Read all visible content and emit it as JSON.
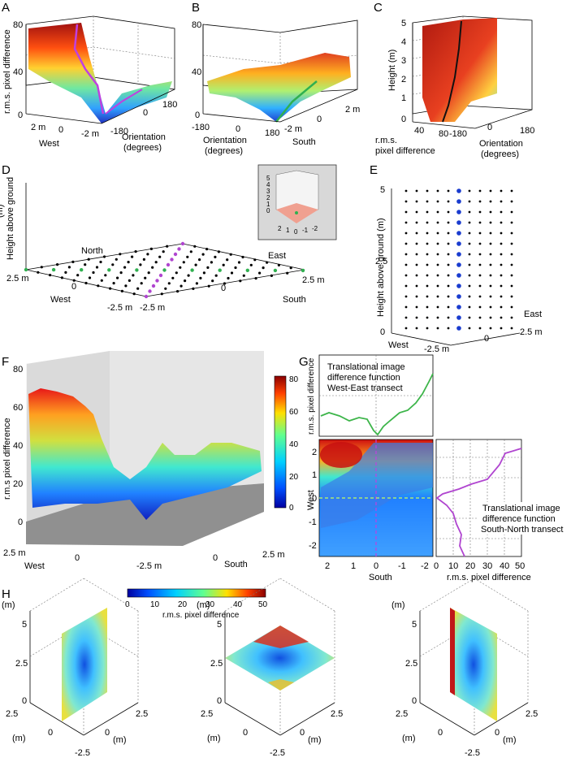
{
  "panels": {
    "A": {
      "letter": "A",
      "zlabel": "r.m.s. pixel difference",
      "zticks": [
        "80",
        "40",
        "0"
      ],
      "xlabel": "West",
      "xticks": [
        "2 m",
        "0",
        "-2 m"
      ],
      "ylabel": "Orientation\n(degrees)",
      "yticks": [
        "-180",
        "0",
        "180"
      ]
    },
    "B": {
      "letter": "B",
      "zticks": [
        "80",
        "40",
        "0"
      ],
      "xlabel": "Orientation\n(degrees)",
      "xticks": [
        "-180",
        "0",
        "180"
      ],
      "ylabel": "South",
      "yticks": [
        "-2 m",
        "0",
        "2 m"
      ]
    },
    "C": {
      "letter": "C",
      "zlabel": "Height (m)",
      "zticks": [
        "5",
        "4",
        "3",
        "2",
        "1",
        "0"
      ],
      "xlabel": "r.m.s.\npixel difference",
      "xticks": [
        "40",
        "80"
      ],
      "ylabel": "Orientation\n(degrees)",
      "yticks": [
        "-180",
        "0",
        "180"
      ]
    },
    "D": {
      "letter": "D",
      "zlabel": "Height above ground\n(m)",
      "labels": {
        "north": "North",
        "east": "East",
        "west": "West",
        "south": "South"
      },
      "ticks": [
        "2.5 m",
        "0",
        "-2.5 m",
        "-2.5 m",
        "0",
        "2.5 m"
      ],
      "inset_ticks": [
        "5",
        "4",
        "3",
        "2",
        "1",
        "0"
      ],
      "inset_xticks": [
        "2",
        "1",
        "0",
        "-1",
        "-2"
      ]
    },
    "E": {
      "letter": "E",
      "zlabel": "Height above ground (m)",
      "zticks": [
        "5",
        "2.5",
        "0"
      ],
      "east": "East",
      "west": "West",
      "xticks": [
        "-2.5 m",
        "0",
        "2.5 m"
      ]
    },
    "F": {
      "letter": "F",
      "zlabel": "r.m.s pixel difference",
      "zticks": [
        "80",
        "60",
        "40",
        "20",
        "0"
      ],
      "west": "West",
      "south": "South",
      "xticks": [
        "2.5 m",
        "0",
        "-2.5 m"
      ],
      "yticks": [
        "0",
        "2.5 m"
      ],
      "colorbar_ticks": [
        "80",
        "60",
        "40",
        "20",
        "0"
      ]
    },
    "G": {
      "letter": "G",
      "top_ylabel": "r.m.s. pixel difference",
      "top_text": "Translational image\ndifference function\nWest-East transect",
      "right_text": "Translational image\ndifference function\nSouth-North transect",
      "right_xlabel": "r.m.s. pixel difference",
      "right_xticks": [
        "0",
        "10",
        "20",
        "30",
        "40",
        "50"
      ],
      "heat_xlabel": "South",
      "heat_xticks": [
        "2",
        "1",
        "0",
        "-1",
        "-2"
      ],
      "heat_ylabel": "West",
      "heat_yticks": [
        "2",
        "1",
        "0",
        "-1",
        "-2"
      ]
    },
    "H": {
      "letter": "H",
      "colorbar_label": "r.m.s. pixel difference",
      "colorbar_ticks": [
        "0",
        "10",
        "20",
        "30",
        "40",
        "50"
      ],
      "axis_m": "(m)",
      "zticks": [
        "5",
        "2.5",
        "0"
      ],
      "hticks": [
        "2.5",
        "0",
        "-2.5",
        "2.5"
      ]
    }
  },
  "chart_data": [
    {
      "type": "surface",
      "panel": "A",
      "zlim": [
        0,
        80
      ],
      "xlim": [
        -2,
        2
      ],
      "ylim": [
        -180,
        180
      ]
    },
    {
      "type": "surface",
      "panel": "B",
      "zlim": [
        0,
        80
      ],
      "xlim": [
        -180,
        180
      ],
      "ylim": [
        -2,
        2
      ]
    },
    {
      "type": "surface",
      "panel": "C",
      "zlim": [
        0,
        5
      ],
      "xlim": [
        40,
        80
      ],
      "ylim": [
        -180,
        180
      ]
    },
    {
      "type": "scatter",
      "panel": "D"
    },
    {
      "type": "scatter",
      "panel": "E",
      "zlim": [
        0,
        5
      ]
    },
    {
      "type": "surface",
      "panel": "F",
      "zlim": [
        0,
        80
      ],
      "colorbar": [
        0,
        80
      ]
    },
    {
      "type": "line",
      "panel": "G-top",
      "series": [
        {
          "name": "West-East transect",
          "color": "#3db54a"
        }
      ]
    },
    {
      "type": "heatmap",
      "panel": "G-heat",
      "xlim": [
        2.5,
        -2.5
      ],
      "ylim": [
        -2.5,
        2.5
      ]
    },
    {
      "type": "line",
      "panel": "G-right",
      "xlim": [
        0,
        50
      ],
      "series": [
        {
          "name": "South-North transect",
          "color": "#b045d0"
        }
      ]
    },
    {
      "type": "heatmap",
      "panel": "H",
      "colorbar": [
        0,
        50
      ]
    }
  ]
}
